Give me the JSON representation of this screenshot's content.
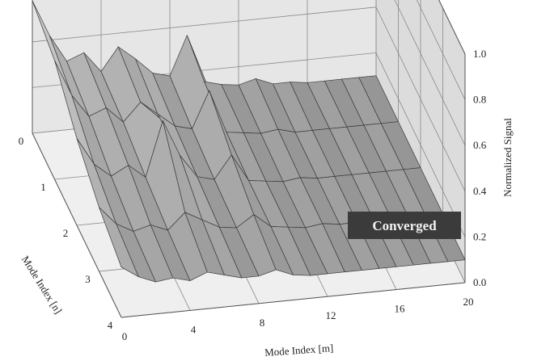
{
  "chart_data": {
    "type": "surface-3d",
    "title": "",
    "xlabel": "Mode Index [m]",
    "ylabel": "Mode Index [n]",
    "zlabel": "Normalized Signal",
    "x_ticks": [
      "0",
      "4",
      "8",
      "12",
      "16",
      "20"
    ],
    "y_ticks": [
      "0",
      "1",
      "2",
      "3",
      "4"
    ],
    "z_ticks": [
      "0.0",
      "0.2",
      "0.4",
      "0.6",
      "0.8",
      "1.0"
    ],
    "xlim": [
      0,
      20
    ],
    "ylim": [
      0,
      4
    ],
    "zlim": [
      0,
      1.0
    ],
    "grid": true,
    "annotation": "Converged",
    "n_values": [
      0,
      1,
      2,
      3,
      4
    ],
    "m_values": [
      0,
      1,
      2,
      3,
      4,
      5,
      6,
      7,
      8,
      9,
      10,
      11,
      12,
      13,
      14,
      15,
      16,
      17,
      18,
      19,
      20
    ],
    "z": [
      [
        0.58,
        0.42,
        0.3,
        0.33,
        0.24,
        0.34,
        0.28,
        0.21,
        0.19,
        0.36,
        0.15,
        0.13,
        0.12,
        0.14,
        0.11,
        0.11,
        0.1,
        0.1,
        0.1,
        0.1,
        0.1
      ],
      [
        0.52,
        0.36,
        0.26,
        0.29,
        0.22,
        0.3,
        0.24,
        0.18,
        0.16,
        0.32,
        0.13,
        0.12,
        0.11,
        0.12,
        0.1,
        0.1,
        0.1,
        0.1,
        0.1,
        0.1,
        0.1
      ],
      [
        0.38,
        0.26,
        0.2,
        0.24,
        0.18,
        0.42,
        0.26,
        0.16,
        0.14,
        0.24,
        0.12,
        0.11,
        0.1,
        0.11,
        0.1,
        0.1,
        0.1,
        0.1,
        0.1,
        0.1,
        0.1
      ],
      [
        0.28,
        0.2,
        0.16,
        0.18,
        0.15,
        0.22,
        0.18,
        0.14,
        0.13,
        0.18,
        0.12,
        0.11,
        0.1,
        0.11,
        0.1,
        0.1,
        0.1,
        0.1,
        0.1,
        0.1,
        0.1
      ],
      [
        0.22,
        0.17,
        0.14,
        0.15,
        0.13,
        0.16,
        0.14,
        0.12,
        0.12,
        0.14,
        0.11,
        0.1,
        0.1,
        0.1,
        0.1,
        0.1,
        0.1,
        0.1,
        0.1,
        0.1,
        0.1
      ]
    ]
  },
  "colors": {
    "surface": "#b4b4b4",
    "surface_edge": "#3a3a3a",
    "wall": "#e6e6e6",
    "grid": "#8a8a8a",
    "badge_bg": "#3b3b3b",
    "badge_text": "#f2f2f2"
  }
}
